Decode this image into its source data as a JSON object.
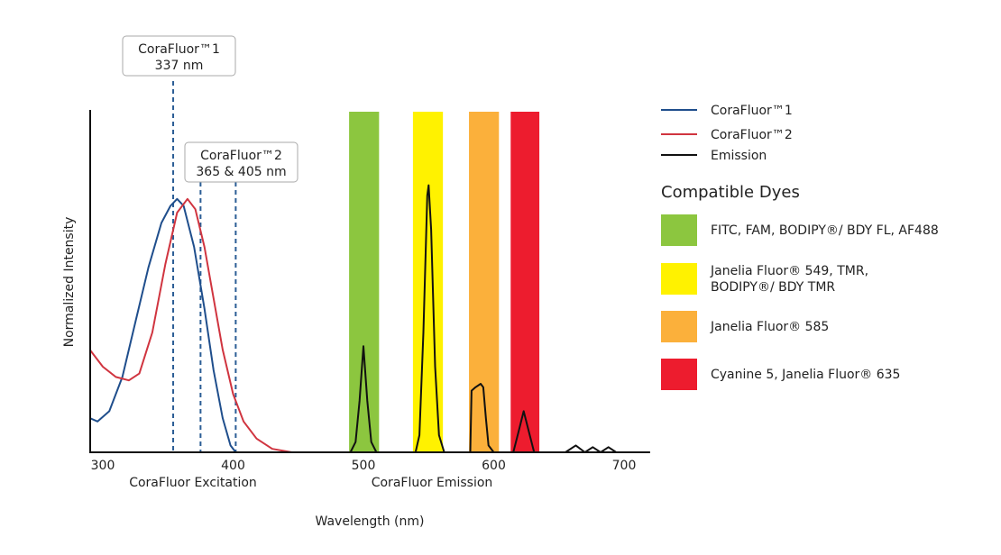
{
  "chart_data": {
    "type": "line",
    "xlabel": "Wavelength (nm)",
    "ylabel": "Normalized Intensity",
    "xlim": [
      290,
      720
    ],
    "ylim": [
      0,
      1
    ],
    "x_ticks": [
      300,
      400,
      500,
      600,
      700
    ],
    "section_labels": {
      "excitation": "CoraFluor Excitation",
      "emission": "CoraFluor Emission"
    },
    "grid": false,
    "legend_position": "right",
    "series": [
      {
        "name": "CoraFluor™1",
        "color": "#1f4e8c",
        "x": [
          290,
          296,
          305,
          315,
          325,
          335,
          345,
          352,
          357,
          362,
          370,
          378,
          385,
          392,
          398,
          402
        ],
        "y": [
          0.1,
          0.09,
          0.12,
          0.22,
          0.38,
          0.54,
          0.67,
          0.72,
          0.74,
          0.72,
          0.6,
          0.42,
          0.24,
          0.1,
          0.02,
          0
        ]
      },
      {
        "name": "CoraFluor™2",
        "color": "#d0343f",
        "x": [
          290,
          300,
          310,
          320,
          328,
          338,
          348,
          357,
          365,
          371,
          378,
          385,
          392,
          400,
          408,
          418,
          430,
          445,
          460
        ],
        "y": [
          0.3,
          0.25,
          0.22,
          0.21,
          0.23,
          0.35,
          0.55,
          0.7,
          0.74,
          0.71,
          0.6,
          0.45,
          0.3,
          0.17,
          0.09,
          0.04,
          0.01,
          0,
          0
        ]
      },
      {
        "name": "Emission",
        "color": "#111111",
        "x": [
          460,
          490,
          494,
          497,
          500,
          503,
          506,
          510,
          540,
          543,
          546,
          549,
          550,
          552,
          555,
          558,
          562,
          582,
          583,
          586,
          590,
          592,
          594,
          596,
          600,
          615,
          619,
          623,
          627,
          631,
          655,
          663,
          670,
          676,
          682,
          688,
          694,
          720
        ],
        "y": [
          0,
          0,
          0.03,
          0.15,
          0.31,
          0.15,
          0.03,
          0,
          0,
          0.05,
          0.35,
          0.75,
          0.78,
          0.65,
          0.25,
          0.05,
          0,
          0,
          0.18,
          0.19,
          0.2,
          0.19,
          0.1,
          0.02,
          0,
          0,
          0.06,
          0.12,
          0.06,
          0,
          0,
          0.02,
          0,
          0.015,
          0,
          0.015,
          0,
          0
        ]
      }
    ],
    "excitation_markers": [
      {
        "label_line1": "CoraFluor™1",
        "label_line2": "337 nm",
        "lines_at": [
          354
        ]
      },
      {
        "label_line1": "CoraFluor™2",
        "label_line2": "365 & 405 nm",
        "lines_at": [
          375,
          402
        ]
      }
    ],
    "dye_bands": [
      {
        "range": [
          489,
          512
        ],
        "color": "#8cc63f"
      },
      {
        "range": [
          538,
          561
        ],
        "color": "#fff200"
      },
      {
        "range": [
          581,
          604
        ],
        "color": "#fbb03b"
      },
      {
        "range": [
          613,
          635
        ],
        "color": "#ed1c2e"
      }
    ],
    "dyes_title": "Compatible Dyes",
    "dyes": [
      {
        "color": "#8cc63f",
        "lines": [
          "FITC, FAM, BODIPY®/ BDY FL, AF488"
        ]
      },
      {
        "color": "#fff200",
        "lines": [
          "Janelia Fluor® 549, TMR,",
          "BODIPY®/ BDY TMR"
        ]
      },
      {
        "color": "#fbb03b",
        "lines": [
          "Janelia Fluor® 585"
        ]
      },
      {
        "color": "#ed1c2e",
        "lines": [
          "Cyanine 5, Janelia Fluor® 635"
        ]
      }
    ]
  }
}
